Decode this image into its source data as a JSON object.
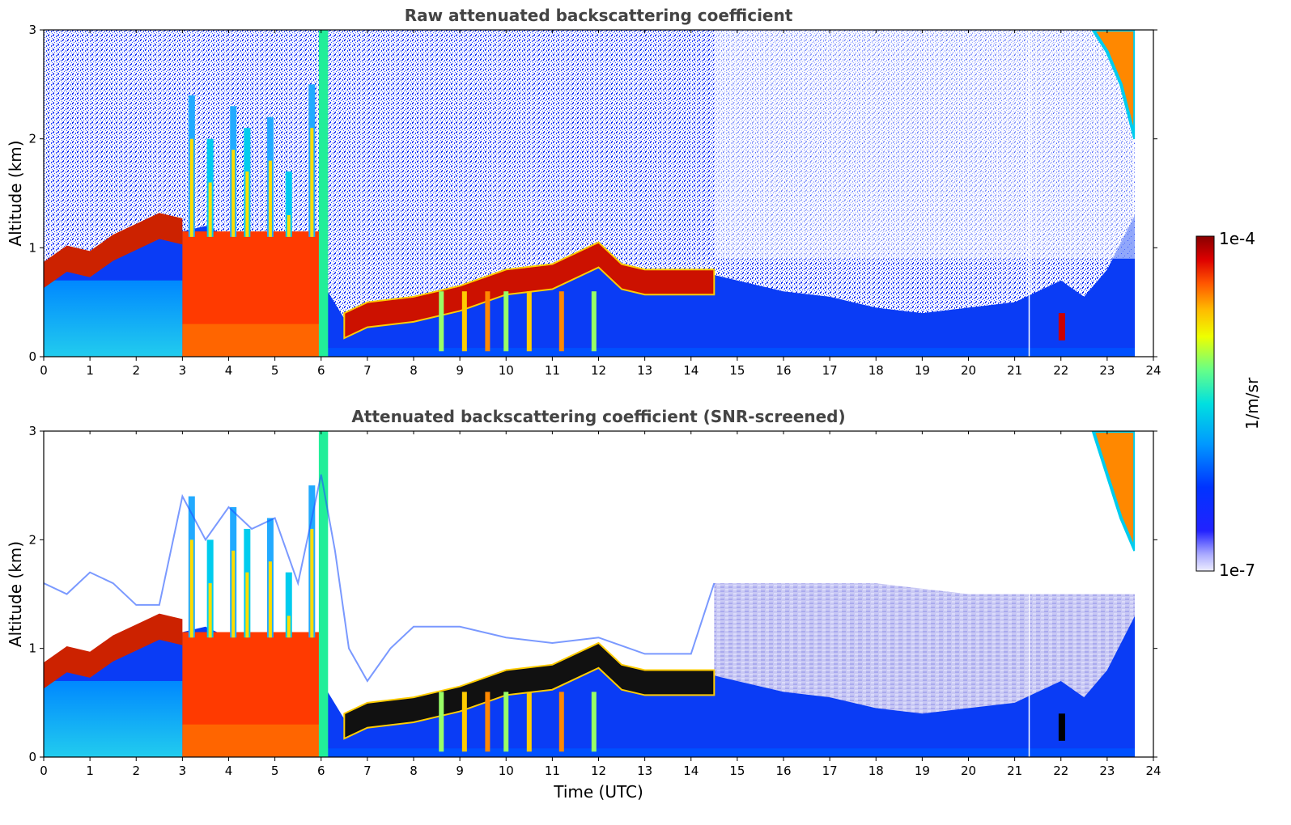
{
  "chart_data": [
    {
      "type": "heatmap",
      "title": "Raw attenuated backscattering coefficient",
      "xlabel": "",
      "ylabel": "Altitude (km)",
      "xlim": [
        0,
        24
      ],
      "ylim": [
        0,
        3
      ],
      "x_ticks": [
        "0",
        "1",
        "2",
        "3",
        "4",
        "5",
        "6",
        "7",
        "8",
        "9",
        "10",
        "11",
        "12",
        "13",
        "14",
        "15",
        "16",
        "17",
        "18",
        "19",
        "20",
        "21",
        "22",
        "23",
        "24"
      ],
      "y_ticks": [
        "0",
        "1",
        "2",
        "3"
      ],
      "grid": false,
      "mixing_layer_top_km": [
        [
          0,
          0.7
        ],
        [
          0.5,
          0.9
        ],
        [
          1,
          0.85
        ],
        [
          1.5,
          1.0
        ],
        [
          2,
          1.1
        ],
        [
          2.5,
          1.2
        ],
        [
          3,
          1.15
        ],
        [
          3.5,
          1.2
        ],
        [
          4,
          1.1
        ],
        [
          4.5,
          0.9
        ],
        [
          5,
          0.7
        ],
        [
          5.5,
          0.5
        ],
        [
          6,
          0.7
        ],
        [
          6.5,
          0.35
        ],
        [
          7,
          0.45
        ],
        [
          8,
          0.5
        ],
        [
          9,
          0.6
        ],
        [
          10,
          0.75
        ],
        [
          11,
          0.8
        ],
        [
          12,
          1.0
        ],
        [
          12.5,
          0.8
        ],
        [
          13,
          0.75
        ],
        [
          14,
          0.75
        ],
        [
          14.5,
          0.75
        ],
        [
          15,
          0.7
        ],
        [
          16,
          0.6
        ],
        [
          17,
          0.55
        ],
        [
          18,
          0.45
        ],
        [
          19,
          0.4
        ],
        [
          20,
          0.45
        ],
        [
          21,
          0.5
        ],
        [
          21.5,
          0.6
        ],
        [
          22,
          0.7
        ],
        [
          22.5,
          0.55
        ],
        [
          23,
          0.8
        ],
        [
          23.6,
          1.3
        ]
      ],
      "upper_cloud_km": [
        [
          22.7,
          3.0
        ],
        [
          23.0,
          2.8
        ],
        [
          23.3,
          2.5
        ],
        [
          23.6,
          2.0
        ]
      ],
      "data_end_utc": 23.6
    },
    {
      "type": "heatmap",
      "title": "Attenuated backscattering coefficient (SNR-screened)",
      "xlabel": "Time (UTC)",
      "ylabel": "Altitude (km)",
      "xlim": [
        0,
        24
      ],
      "ylim": [
        0,
        3
      ],
      "x_ticks": [
        "0",
        "1",
        "2",
        "3",
        "4",
        "5",
        "6",
        "7",
        "8",
        "9",
        "10",
        "11",
        "12",
        "13",
        "14",
        "15",
        "16",
        "17",
        "18",
        "19",
        "20",
        "21",
        "22",
        "23",
        "24"
      ],
      "y_ticks": [
        "0",
        "1",
        "2",
        "3"
      ],
      "grid": false,
      "signal_top_km": [
        [
          0,
          1.6
        ],
        [
          0.5,
          1.5
        ],
        [
          1,
          1.7
        ],
        [
          1.5,
          1.6
        ],
        [
          2,
          1.4
        ],
        [
          2.5,
          1.4
        ],
        [
          3,
          2.4
        ],
        [
          3.5,
          2.0
        ],
        [
          4,
          2.3
        ],
        [
          4.5,
          2.1
        ],
        [
          5,
          2.2
        ],
        [
          5.5,
          1.6
        ],
        [
          6,
          2.6
        ],
        [
          6.3,
          1.9
        ],
        [
          6.6,
          1.0
        ],
        [
          7,
          0.7
        ],
        [
          7.5,
          1.0
        ],
        [
          8,
          1.2
        ],
        [
          9,
          1.2
        ],
        [
          10,
          1.1
        ],
        [
          11,
          1.05
        ],
        [
          12,
          1.1
        ],
        [
          13,
          0.95
        ],
        [
          14,
          0.95
        ],
        [
          14.5,
          1.6
        ],
        [
          16,
          1.6
        ],
        [
          18,
          1.6
        ],
        [
          20,
          1.5
        ],
        [
          22,
          1.5
        ],
        [
          23,
          1.5
        ],
        [
          23.6,
          1.5
        ]
      ],
      "mixing_layer_top_km": [
        [
          0,
          0.7
        ],
        [
          0.5,
          0.9
        ],
        [
          1,
          0.85
        ],
        [
          1.5,
          1.0
        ],
        [
          2,
          1.1
        ],
        [
          2.5,
          1.2
        ],
        [
          3,
          1.15
        ],
        [
          3.5,
          1.2
        ],
        [
          4,
          1.1
        ],
        [
          4.5,
          0.9
        ],
        [
          5,
          0.7
        ],
        [
          5.5,
          0.5
        ],
        [
          6,
          0.7
        ],
        [
          6.5,
          0.35
        ],
        [
          7,
          0.45
        ],
        [
          8,
          0.5
        ],
        [
          9,
          0.6
        ],
        [
          10,
          0.75
        ],
        [
          11,
          0.8
        ],
        [
          12,
          1.0
        ],
        [
          12.5,
          0.8
        ],
        [
          13,
          0.75
        ],
        [
          14,
          0.75
        ],
        [
          14.5,
          0.75
        ],
        [
          15,
          0.7
        ],
        [
          16,
          0.6
        ],
        [
          17,
          0.55
        ],
        [
          18,
          0.45
        ],
        [
          19,
          0.4
        ],
        [
          20,
          0.45
        ],
        [
          21,
          0.5
        ],
        [
          21.5,
          0.6
        ],
        [
          22,
          0.7
        ],
        [
          22.5,
          0.55
        ],
        [
          23,
          0.8
        ],
        [
          23.6,
          1.3
        ]
      ],
      "upper_cloud_km": [
        [
          22.7,
          3.0
        ],
        [
          23.0,
          2.6
        ],
        [
          23.3,
          2.2
        ],
        [
          23.6,
          1.9
        ]
      ],
      "data_end_utc": 23.6
    }
  ],
  "colorbar": {
    "label": "1/m/sr",
    "max_label": "1e-4",
    "min_label": "1e-7",
    "scale": "log",
    "range": [
      1e-07,
      0.0001
    ],
    "colormap": [
      "#eeeeff",
      "#ccccff",
      "#9999ff",
      "#5555ff",
      "#0000ee",
      "#0044ff",
      "#0099ff",
      "#00ddee",
      "#33ffcc",
      "#99ff66",
      "#eeff00",
      "#ffcc00",
      "#ff8800",
      "#ff3300",
      "#dd0000",
      "#990000"
    ]
  }
}
